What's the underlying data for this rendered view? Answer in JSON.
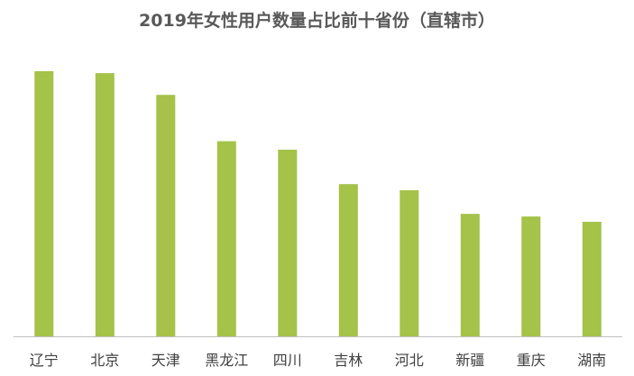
{
  "chart_data": {
    "type": "bar",
    "title": "2019年女性用户数量占比前十省份（直辖市）",
    "categories": [
      "辽宁",
      "北京",
      "天津",
      "黑龙江",
      "四川",
      "吉林",
      "河北",
      "新疆",
      "重庆",
      "湖南"
    ],
    "values": [
      100,
      99.3,
      91.1,
      73.6,
      70.4,
      57.4,
      55.1,
      46.2,
      45.2,
      43.2
    ],
    "xlabel": "",
    "ylabel": "",
    "ylim": [
      0,
      100
    ],
    "grid": false,
    "legend": "none",
    "bar_color": "#a5c249",
    "axis_color": "#bfbfbf"
  }
}
